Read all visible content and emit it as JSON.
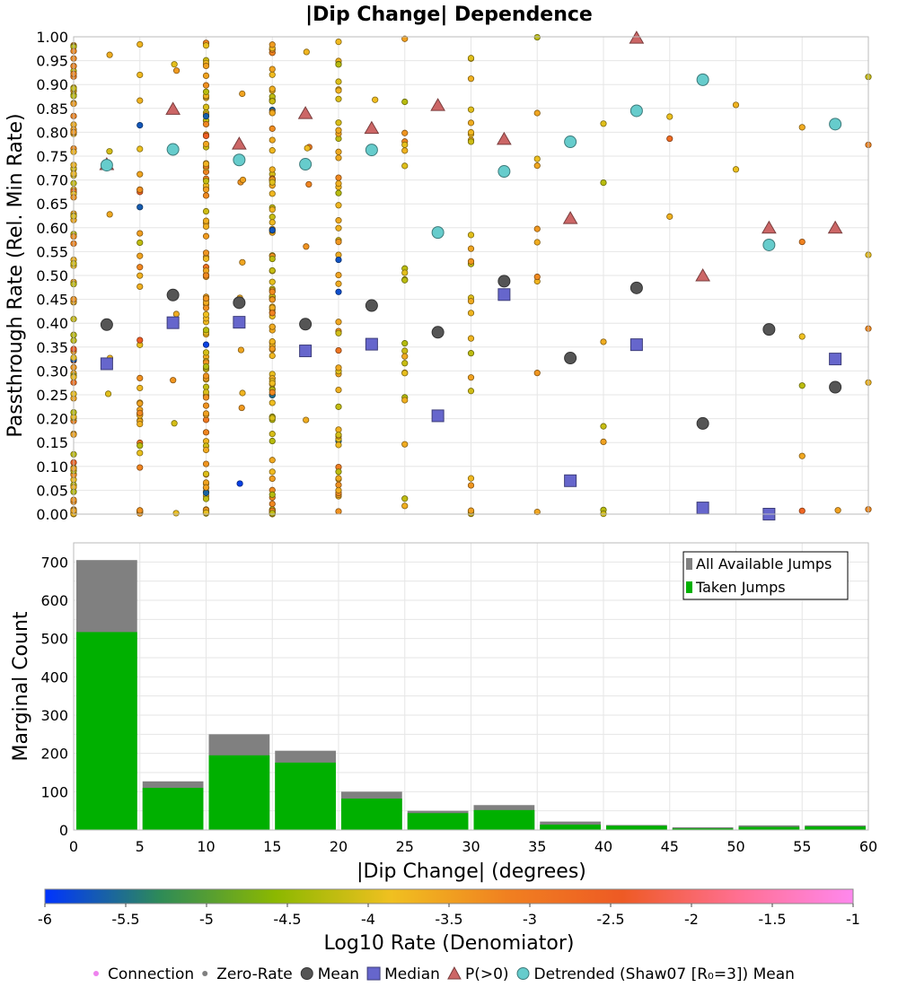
{
  "chart_data": [
    {
      "type": "scatter",
      "title": "|Dip Change| Dependence",
      "ylabel": "Passthrough Rate (Rel. Min Rate)",
      "xlim": [
        0,
        60
      ],
      "ylim": [
        0,
        1
      ],
      "x_ticks": [
        0,
        5,
        10,
        15,
        20,
        25,
        30,
        35,
        40,
        45,
        50,
        55,
        60
      ],
      "y_ticks": [
        0.0,
        0.05,
        0.1,
        0.15,
        0.2,
        0.25,
        0.3,
        0.35,
        0.4,
        0.45,
        0.5,
        0.55,
        0.6,
        0.65,
        0.7,
        0.75,
        0.8,
        0.85,
        0.9,
        0.95,
        1.0
      ],
      "y_tick_labels": [
        "0.00",
        "0.05",
        "0.10",
        "0.15",
        "0.20",
        "0.25",
        "0.30",
        "0.35",
        "0.40",
        "0.45",
        "0.50",
        "0.55",
        "0.60",
        "0.65",
        "0.70",
        "0.75",
        "0.80",
        "0.85",
        "0.90",
        "0.95",
        "1.00"
      ],
      "grid": true,
      "connection_columns": [
        {
          "x": 0,
          "count": 110
        },
        {
          "x": 5,
          "count": 45
        },
        {
          "x": 10,
          "count": 120
        },
        {
          "x": 15,
          "count": 110
        },
        {
          "x": 20,
          "count": 55
        },
        {
          "x": 25,
          "count": 22
        },
        {
          "x": 30,
          "count": 28
        },
        {
          "x": 35,
          "count": 10
        },
        {
          "x": 40,
          "count": 7
        },
        {
          "x": 45,
          "count": 3
        },
        {
          "x": 50,
          "count": 2
        },
        {
          "x": 55,
          "count": 6
        },
        {
          "x": 60,
          "count": 7
        }
      ],
      "series": [
        {
          "name": "Mean",
          "marker": "circle",
          "color": "#555555",
          "points": [
            [
              2.5,
              0.397
            ],
            [
              7.5,
              0.459
            ],
            [
              12.5,
              0.443
            ],
            [
              17.5,
              0.398
            ],
            [
              22.5,
              0.437
            ],
            [
              27.5,
              0.381
            ],
            [
              32.5,
              0.488
            ],
            [
              37.5,
              0.327
            ],
            [
              42.5,
              0.474
            ],
            [
              47.5,
              0.19
            ],
            [
              52.5,
              0.387
            ],
            [
              57.5,
              0.266
            ]
          ]
        },
        {
          "name": "Median",
          "marker": "square",
          "color": "#6666cc",
          "points": [
            [
              2.5,
              0.315
            ],
            [
              7.5,
              0.401
            ],
            [
              12.5,
              0.402
            ],
            [
              17.5,
              0.342
            ],
            [
              22.5,
              0.356
            ],
            [
              27.5,
              0.206
            ],
            [
              32.5,
              0.46
            ],
            [
              37.5,
              0.07
            ],
            [
              42.5,
              0.355
            ],
            [
              47.5,
              0.013
            ],
            [
              52.5,
              0.0
            ],
            [
              57.5,
              0.325
            ]
          ]
        },
        {
          "name": "P(>0)",
          "marker": "triangle",
          "color": "#cc6666",
          "points": [
            [
              2.5,
              0.733
            ],
            [
              7.5,
              0.849
            ],
            [
              12.5,
              0.776
            ],
            [
              17.5,
              0.84
            ],
            [
              22.5,
              0.809
            ],
            [
              27.5,
              0.857
            ],
            [
              32.5,
              0.786
            ],
            [
              37.5,
              0.62
            ],
            [
              42.5,
              0.998
            ],
            [
              47.5,
              0.5
            ],
            [
              52.5,
              0.6
            ],
            [
              57.5,
              0.6
            ]
          ]
        },
        {
          "name": "Detrended (Shaw07 [R₀=3]) Mean",
          "marker": "circle",
          "color": "#66cccc",
          "points": [
            [
              2.5,
              0.731
            ],
            [
              7.5,
              0.764
            ],
            [
              12.5,
              0.742
            ],
            [
              17.5,
              0.733
            ],
            [
              22.5,
              0.763
            ],
            [
              27.5,
              0.59
            ],
            [
              32.5,
              0.718
            ],
            [
              37.5,
              0.78
            ],
            [
              42.5,
              0.845
            ],
            [
              47.5,
              0.91
            ],
            [
              52.5,
              0.564
            ],
            [
              57.5,
              0.817
            ]
          ]
        }
      ]
    },
    {
      "type": "bar",
      "xlabel": "|Dip Change| (degrees)",
      "ylabel": "Marginal Count",
      "xlim": [
        0,
        60
      ],
      "ylim": [
        0,
        750
      ],
      "x_ticks": [
        0,
        5,
        10,
        15,
        20,
        25,
        30,
        35,
        40,
        45,
        50,
        55,
        60
      ],
      "y_ticks": [
        0,
        100,
        200,
        300,
        400,
        500,
        600,
        700
      ],
      "bin_starts": [
        0,
        5,
        10,
        15,
        20,
        25,
        30,
        35,
        40,
        45,
        50,
        55
      ],
      "bin_width": 5,
      "grid": true,
      "legend_position": "top-right",
      "series": [
        {
          "name": "All Available Jumps",
          "color": "#808080",
          "values": [
            705,
            127,
            250,
            207,
            100,
            50,
            65,
            22,
            13,
            7,
            12,
            12
          ]
        },
        {
          "name": "Taken Jumps",
          "color": "#00b000",
          "values": [
            517,
            110,
            195,
            176,
            82,
            44,
            52,
            14,
            11,
            4,
            8,
            9
          ]
        }
      ]
    }
  ],
  "colorbar": {
    "label": "Log10 Rate (Denomiator)",
    "range": [
      -6,
      -1
    ],
    "ticks": [
      -6,
      -5.5,
      -5,
      -4.5,
      -4,
      -3.5,
      -3,
      -2.5,
      -2,
      -1.5,
      -1
    ],
    "tick_labels": [
      "-6",
      "-5.5",
      "-5",
      "-4.5",
      "-4",
      "-3.5",
      "-3",
      "-2.5",
      "-2",
      "-1.5",
      "-1"
    ],
    "stops": [
      "#0033ff",
      "#2e8b57",
      "#8cb800",
      "#f0c020",
      "#f08020",
      "#ee5a24",
      "#ff6f91",
      "#ff88ee"
    ]
  },
  "legend": {
    "items": [
      {
        "label": "Connection",
        "marker": "small-dot",
        "color": "#ee82ee"
      },
      {
        "label": "Zero-Rate",
        "marker": "small-dot",
        "color": "#808080"
      },
      {
        "label": "Mean",
        "marker": "circle",
        "color": "#555555"
      },
      {
        "label": "Median",
        "marker": "square",
        "color": "#6666cc"
      },
      {
        "label": "P(>0)",
        "marker": "triangle",
        "color": "#cc6666"
      },
      {
        "label": "Detrended (Shaw07 [R₀=3]) Mean",
        "marker": "circle",
        "color": "#66cccc"
      }
    ]
  }
}
